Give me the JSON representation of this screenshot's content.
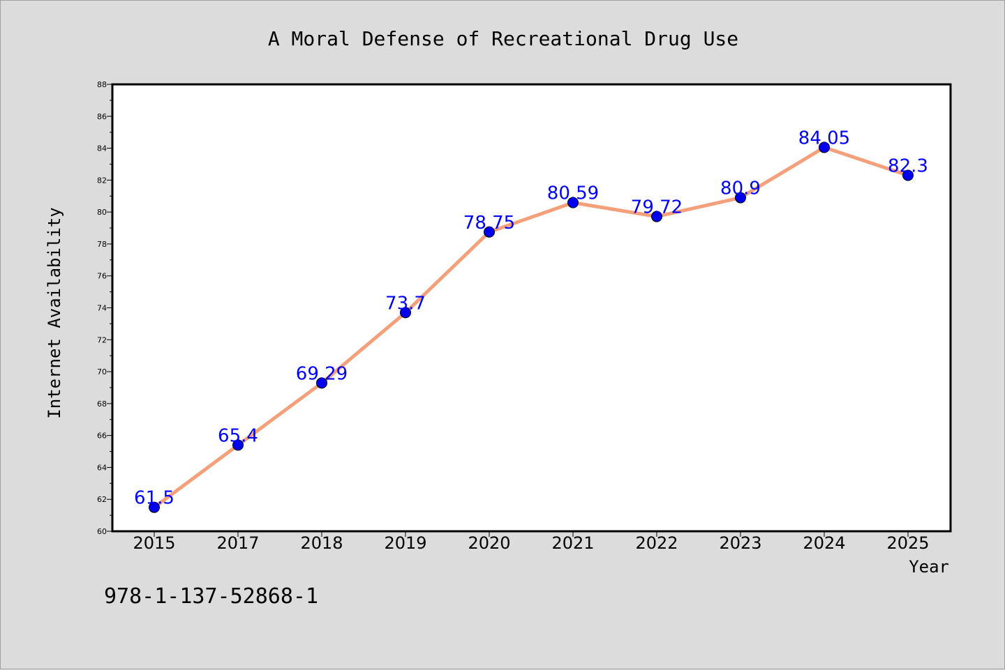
{
  "chart_data": {
    "type": "line",
    "title": "A Moral Defense of Recreational Drug Use",
    "xlabel": "Year",
    "ylabel": "Internet Availability",
    "categories": [
      "2015",
      "2017",
      "2018",
      "2019",
      "2020",
      "2021",
      "2022",
      "2023",
      "2024",
      "2025"
    ],
    "series": [
      {
        "values": [
          61.5,
          65.4,
          69.29,
          73.7,
          78.75,
          80.59,
          79.72,
          80.9,
          84.05,
          82.3
        ],
        "data_labels": [
          "61.5",
          "65.4",
          "69.29",
          "73.7",
          "78.75",
          "80.59",
          "79.72",
          "80.9",
          "84.05",
          "82.3"
        ]
      }
    ],
    "ylim": [
      60,
      88
    ],
    "yticks": [
      60,
      62,
      64,
      66,
      68,
      70,
      72,
      74,
      76,
      78,
      80,
      82,
      84,
      86,
      88
    ],
    "grid": false,
    "legend": "none",
    "colors": {
      "background": "#dcdcdc",
      "plot_background": "#ffffff",
      "line": "#f4a07a",
      "marker": "#0000ee",
      "data_label": "#0000ff"
    }
  },
  "footnote": "978-1-137-52868-1"
}
